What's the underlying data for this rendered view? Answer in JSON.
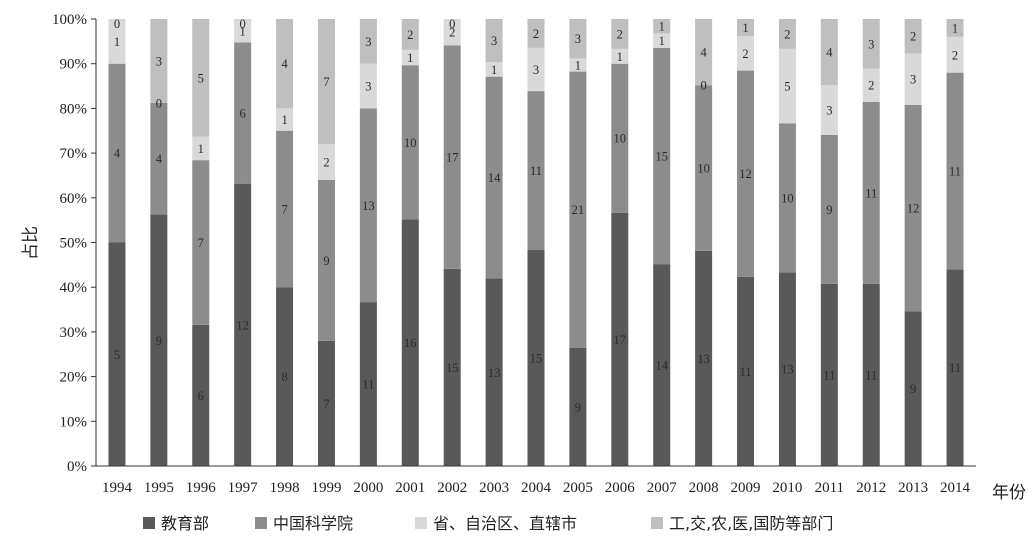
{
  "chart_data": {
    "type": "bar",
    "stacked": true,
    "normalized_percent": true,
    "title": "",
    "xlabel": "年份",
    "ylabel": "占比",
    "ylim": [
      0,
      100
    ],
    "yticks": [
      "0%",
      "10%",
      "20%",
      "30%",
      "40%",
      "50%",
      "60%",
      "70%",
      "80%",
      "90%",
      "100%"
    ],
    "grid": false,
    "legend_position": "bottom",
    "categories": [
      "1994",
      "1995",
      "1996",
      "1997",
      "1998",
      "1999",
      "2000",
      "2001",
      "2002",
      "2003",
      "2004",
      "2005",
      "2006",
      "2007",
      "2008",
      "2009",
      "2010",
      "2011",
      "2012",
      "2013",
      "2014"
    ],
    "series": [
      {
        "name": "教育部",
        "color": "#595959",
        "values": [
          5,
          9,
          6,
          12,
          8,
          7,
          11,
          16,
          15,
          13,
          15,
          9,
          17,
          14,
          13,
          11,
          13,
          11,
          11,
          9,
          11
        ]
      },
      {
        "name": "中国科学院",
        "color": "#8c8c8c",
        "values": [
          4,
          4,
          7,
          6,
          7,
          9,
          13,
          10,
          17,
          14,
          11,
          21,
          10,
          15,
          10,
          12,
          10,
          9,
          11,
          12,
          11
        ]
      },
      {
        "name": "省、自治区、直辖市",
        "color": "#d9d9d9",
        "values": [
          1,
          0,
          1,
          1,
          1,
          2,
          3,
          1,
          2,
          1,
          3,
          1,
          1,
          1,
          0,
          2,
          5,
          3,
          2,
          3,
          2
        ]
      },
      {
        "name": "工,交,农,医,国防等部门",
        "color": "#bfbfbf",
        "values": [
          0,
          3,
          5,
          0,
          4,
          7,
          3,
          2,
          0,
          3,
          2,
          3,
          2,
          1,
          4,
          1,
          2,
          4,
          3,
          2,
          1
        ]
      }
    ]
  }
}
